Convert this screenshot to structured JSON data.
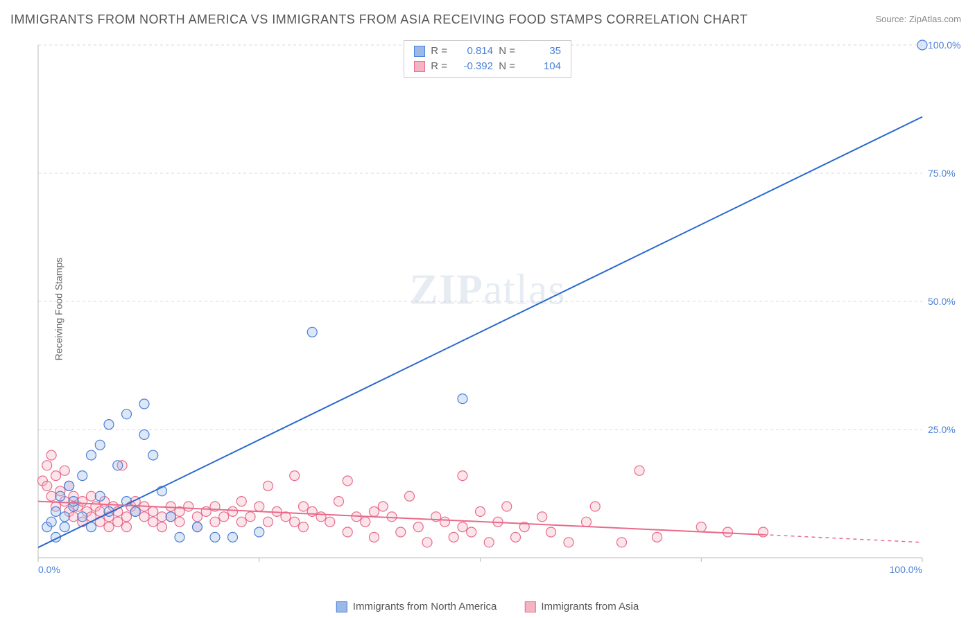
{
  "title": "IMMIGRANTS FROM NORTH AMERICA VS IMMIGRANTS FROM ASIA RECEIVING FOOD STAMPS CORRELATION CHART",
  "source_prefix": "Source: ",
  "source_name": "ZipAtlas.com",
  "ylabel": "Receiving Food Stamps",
  "watermark_bold": "ZIP",
  "watermark_light": "atlas",
  "chart": {
    "type": "scatter",
    "xlim": [
      0,
      100
    ],
    "ylim": [
      0,
      100
    ],
    "x_ticks": [
      0,
      25,
      50,
      75,
      100
    ],
    "y_ticks": [
      0,
      25,
      50,
      75,
      100
    ],
    "x_tick_labels": [
      "0.0%",
      "",
      "",
      "",
      "100.0%"
    ],
    "y_tick_labels": [
      "",
      "25.0%",
      "50.0%",
      "75.0%",
      "100.0%"
    ],
    "grid_color": "#d8d8d8",
    "axis_color": "#bbbbbb",
    "background_color": "#ffffff",
    "tick_label_color": "#4a7fd6",
    "tick_label_fontsize": 14,
    "marker_radius": 7,
    "marker_stroke_width": 1.2,
    "marker_fill_opacity": 0.35,
    "line_width": 2
  },
  "series": [
    {
      "name": "Immigrants from North America",
      "color_fill": "#9bb9e8",
      "color_stroke": "#4a7fd6",
      "line_color": "#2968d0",
      "R": "0.814",
      "N": "35",
      "trend": {
        "x1": 0,
        "y1": 2,
        "x2": 100,
        "y2": 86
      },
      "points": [
        [
          1,
          6
        ],
        [
          1.5,
          7
        ],
        [
          2,
          9
        ],
        [
          2,
          4
        ],
        [
          2.5,
          12
        ],
        [
          3,
          8
        ],
        [
          3,
          6
        ],
        [
          3.5,
          14
        ],
        [
          4,
          10
        ],
        [
          4,
          11
        ],
        [
          5,
          8
        ],
        [
          5,
          16
        ],
        [
          6,
          6
        ],
        [
          6,
          20
        ],
        [
          7,
          12
        ],
        [
          7,
          22
        ],
        [
          8,
          9
        ],
        [
          8,
          26
        ],
        [
          9,
          18
        ],
        [
          10,
          28
        ],
        [
          10,
          11
        ],
        [
          11,
          9
        ],
        [
          12,
          30
        ],
        [
          12,
          24
        ],
        [
          13,
          20
        ],
        [
          14,
          13
        ],
        [
          15,
          8
        ],
        [
          16,
          4
        ],
        [
          18,
          6
        ],
        [
          20,
          4
        ],
        [
          22,
          4
        ],
        [
          25,
          5
        ],
        [
          31,
          44
        ],
        [
          48,
          31
        ],
        [
          100,
          100
        ]
      ]
    },
    {
      "name": "Immigrants from Asia",
      "color_fill": "#f4b4c4",
      "color_stroke": "#e86a8a",
      "line_color": "#e86a8a",
      "R": "-0.392",
      "N": "104",
      "trend": {
        "x1": 0,
        "y1": 11,
        "x2": 82,
        "y2": 4.5
      },
      "trend_dash": {
        "x1": 82,
        "y1": 4.5,
        "x2": 100,
        "y2": 3
      },
      "points": [
        [
          0.5,
          15
        ],
        [
          1,
          18
        ],
        [
          1,
          14
        ],
        [
          1.5,
          12
        ],
        [
          1.5,
          20
        ],
        [
          2,
          10
        ],
        [
          2,
          16
        ],
        [
          2.5,
          13
        ],
        [
          3,
          17
        ],
        [
          3,
          11
        ],
        [
          3.5,
          9
        ],
        [
          3.5,
          14
        ],
        [
          4,
          12
        ],
        [
          4,
          8
        ],
        [
          4.5,
          10
        ],
        [
          5,
          11
        ],
        [
          5,
          7
        ],
        [
          5.5,
          9
        ],
        [
          6,
          12
        ],
        [
          6,
          8
        ],
        [
          6.5,
          10
        ],
        [
          7,
          9
        ],
        [
          7,
          7
        ],
        [
          7.5,
          11
        ],
        [
          8,
          8
        ],
        [
          8,
          6
        ],
        [
          8.5,
          10
        ],
        [
          9,
          9
        ],
        [
          9,
          7
        ],
        [
          9.5,
          18
        ],
        [
          10,
          8
        ],
        [
          10,
          6
        ],
        [
          10.5,
          10
        ],
        [
          11,
          9
        ],
        [
          11,
          11
        ],
        [
          12,
          8
        ],
        [
          12,
          10
        ],
        [
          13,
          7
        ],
        [
          13,
          9
        ],
        [
          14,
          8
        ],
        [
          14,
          6
        ],
        [
          15,
          10
        ],
        [
          15,
          8
        ],
        [
          16,
          9
        ],
        [
          16,
          7
        ],
        [
          17,
          10
        ],
        [
          18,
          8
        ],
        [
          18,
          6
        ],
        [
          19,
          9
        ],
        [
          20,
          7
        ],
        [
          20,
          10
        ],
        [
          21,
          8
        ],
        [
          22,
          9
        ],
        [
          23,
          7
        ],
        [
          23,
          11
        ],
        [
          24,
          8
        ],
        [
          25,
          10
        ],
        [
          26,
          7
        ],
        [
          26,
          14
        ],
        [
          27,
          9
        ],
        [
          28,
          8
        ],
        [
          29,
          16
        ],
        [
          29,
          7
        ],
        [
          30,
          10
        ],
        [
          30,
          6
        ],
        [
          31,
          9
        ],
        [
          32,
          8
        ],
        [
          33,
          7
        ],
        [
          34,
          11
        ],
        [
          35,
          15
        ],
        [
          35,
          5
        ],
        [
          36,
          8
        ],
        [
          37,
          7
        ],
        [
          38,
          9
        ],
        [
          38,
          4
        ],
        [
          39,
          10
        ],
        [
          40,
          8
        ],
        [
          41,
          5
        ],
        [
          42,
          12
        ],
        [
          43,
          6
        ],
        [
          44,
          3
        ],
        [
          45,
          8
        ],
        [
          46,
          7
        ],
        [
          47,
          4
        ],
        [
          48,
          16
        ],
        [
          48,
          6
        ],
        [
          49,
          5
        ],
        [
          50,
          9
        ],
        [
          51,
          3
        ],
        [
          52,
          7
        ],
        [
          53,
          10
        ],
        [
          54,
          4
        ],
        [
          55,
          6
        ],
        [
          57,
          8
        ],
        [
          58,
          5
        ],
        [
          60,
          3
        ],
        [
          62,
          7
        ],
        [
          63,
          10
        ],
        [
          66,
          3
        ],
        [
          68,
          17
        ],
        [
          70,
          4
        ],
        [
          75,
          6
        ],
        [
          78,
          5
        ],
        [
          82,
          5
        ]
      ]
    }
  ],
  "stats_box": {
    "R_label": "R =",
    "N_label": "N ="
  },
  "legend": {
    "series1_label": "Immigrants from North America",
    "series2_label": "Immigrants from Asia"
  }
}
